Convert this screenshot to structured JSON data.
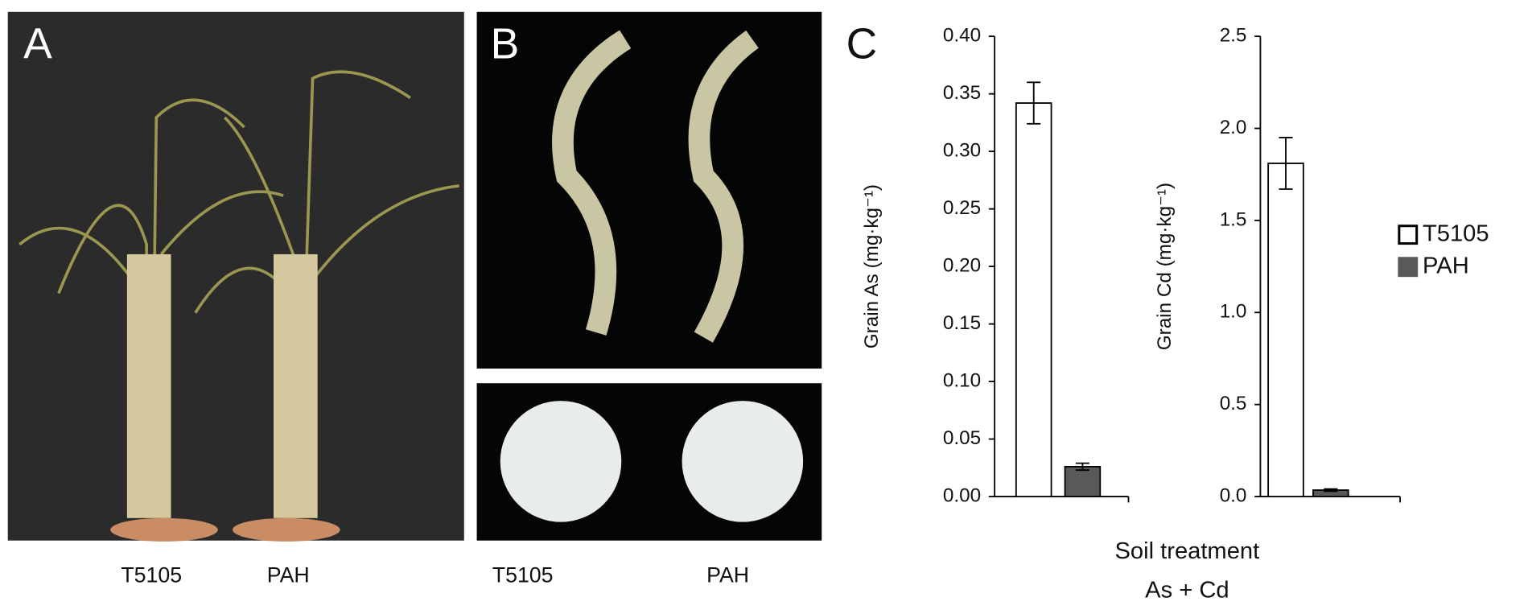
{
  "panels": {
    "A": {
      "label": "A",
      "captions": [
        "T5105",
        "PAH"
      ]
    },
    "B": {
      "label": "B",
      "captions": [
        "T5105",
        "PAH"
      ]
    },
    "C": {
      "label": "C"
    }
  },
  "x_label": [
    "Soil treatment",
    "As + Cd"
  ],
  "chart_data": [
    {
      "type": "bar",
      "y_label": "Grain As (mg·kg⁻¹)",
      "ylim": [
        0,
        0.4
      ],
      "yticks": [
        {
          "value": 0,
          "label": "0.00"
        },
        0.05,
        {
          "value": 0.1,
          "label": "0.10"
        },
        0.15,
        {
          "value": 0.2,
          "label": "0.20"
        },
        0.25,
        {
          "value": 0.3,
          "label": "0.30"
        },
        0.35,
        {
          "value": 0.4,
          "label": "0.40"
        }
      ],
      "legend": "right",
      "series": [
        {
          "name": "T5105",
          "color": "#ffffff",
          "values": [
            0.342
          ],
          "errors": [
            0.018
          ]
        },
        {
          "name": "PAH",
          "color": "#595959",
          "values": [
            0.026
          ],
          "errors": [
            0.003
          ]
        }
      ]
    },
    {
      "type": "bar",
      "y_label": "Grain Cd (mg·kg⁻¹)",
      "ylim": [
        0,
        2.5
      ],
      "yticks": [
        {
          "value": 0,
          "label": "0.0"
        },
        0.5,
        {
          "value": 1,
          "label": "1.0"
        },
        1.5,
        {
          "value": 2,
          "label": "2.0"
        },
        2.5
      ],
      "series": [
        {
          "color": "#ffffff",
          "values": [
            1.81
          ],
          "errors": [
            0.14
          ]
        },
        {
          "color": "#595959",
          "values": [
            0.035
          ],
          "errors": [
            0.006
          ]
        }
      ]
    }
  ]
}
